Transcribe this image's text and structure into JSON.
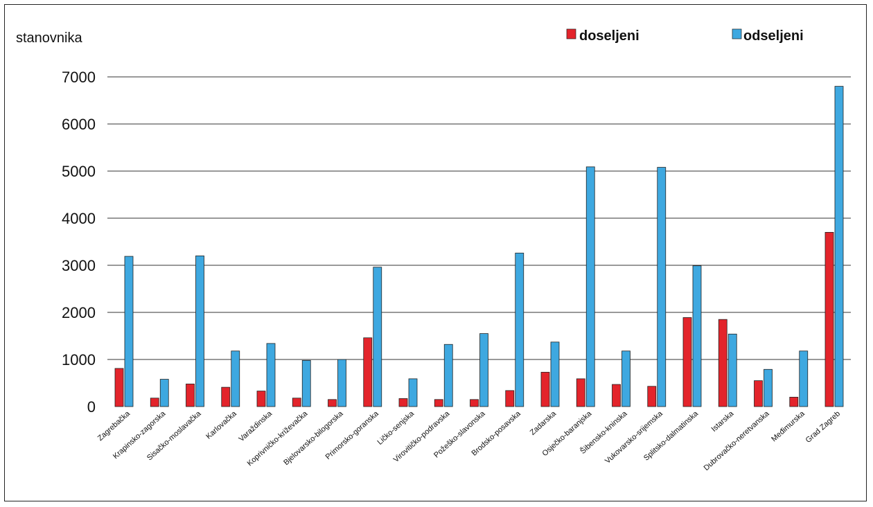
{
  "chart_data": {
    "type": "bar",
    "ylabel": "stanovnika",
    "xlabel": "",
    "ylim": [
      0,
      7000
    ],
    "yticks": [
      0,
      1000,
      2000,
      3000,
      4000,
      5000,
      6000,
      7000
    ],
    "grid": true,
    "legend_position": "top-right",
    "categories": [
      "Zagrebačka",
      "Krapinsko-zagorska",
      "Sisačko-moslavačka",
      "Karlovačka",
      "Varaždinska",
      "Koprivničko-križevačka",
      "Bjelovarsko-bilogorska",
      "Primorsko-goranska",
      "Ličko-senjska",
      "Virovitičko-podravska",
      "Požeško-slavonska",
      "Brodsko-posavska",
      "Zadarska",
      "Osječko-baranjska",
      "Šibensko-kninska",
      "Vukovarsko-srijemska",
      "Splitsko-dalmatinska",
      "Istarska",
      "Dubrovačko-neretvanska",
      "Međimurska",
      "Grad Zagreb"
    ],
    "series": [
      {
        "name": "doseljeni",
        "color": "#e3242b",
        "values": [
          810,
          180,
          480,
          410,
          330,
          180,
          150,
          1460,
          170,
          150,
          150,
          340,
          730,
          590,
          470,
          430,
          1890,
          1850,
          550,
          200,
          3700
        ]
      },
      {
        "name": "odseljeni",
        "color": "#3ea8e0",
        "values": [
          3190,
          580,
          3200,
          1180,
          1340,
          980,
          1000,
          2960,
          590,
          1320,
          1550,
          3260,
          1370,
          5090,
          1180,
          5080,
          2990,
          1540,
          790,
          1180,
          6800
        ]
      }
    ]
  }
}
